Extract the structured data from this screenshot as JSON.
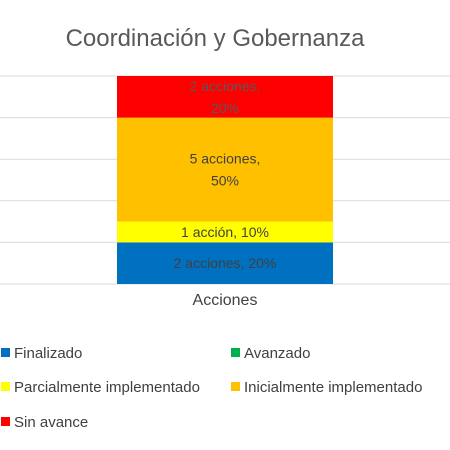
{
  "chart_data": {
    "type": "bar",
    "stacked": true,
    "title": "Coordinación y Gobernanza",
    "categories": [
      "Acciones"
    ],
    "ylim": [
      0,
      100
    ],
    "grid": true,
    "legend_position": "bottom",
    "series": [
      {
        "name": "Finalizado",
        "values": [
          20
        ],
        "count": 2,
        "label_lines": [
          "2 acciones, 20%"
        ],
        "color": "#0070C0"
      },
      {
        "name": "Avanzado",
        "values": [
          0
        ],
        "count": 0,
        "label_lines": [],
        "color": "#00B050"
      },
      {
        "name": "Parcialmente implementado",
        "values": [
          10
        ],
        "count": 1,
        "label_lines": [
          "1 acción, 10%"
        ],
        "color": "#FFFF00"
      },
      {
        "name": "Inicialmente implementado",
        "values": [
          50
        ],
        "count": 5,
        "label_lines": [
          "5 acciones,",
          "50%"
        ],
        "color": "#FFC000"
      },
      {
        "name": "Sin avance",
        "values": [
          20
        ],
        "count": 2,
        "label_lines": [
          "2 acciones,",
          "20%"
        ],
        "color": "#FF0000"
      }
    ]
  }
}
